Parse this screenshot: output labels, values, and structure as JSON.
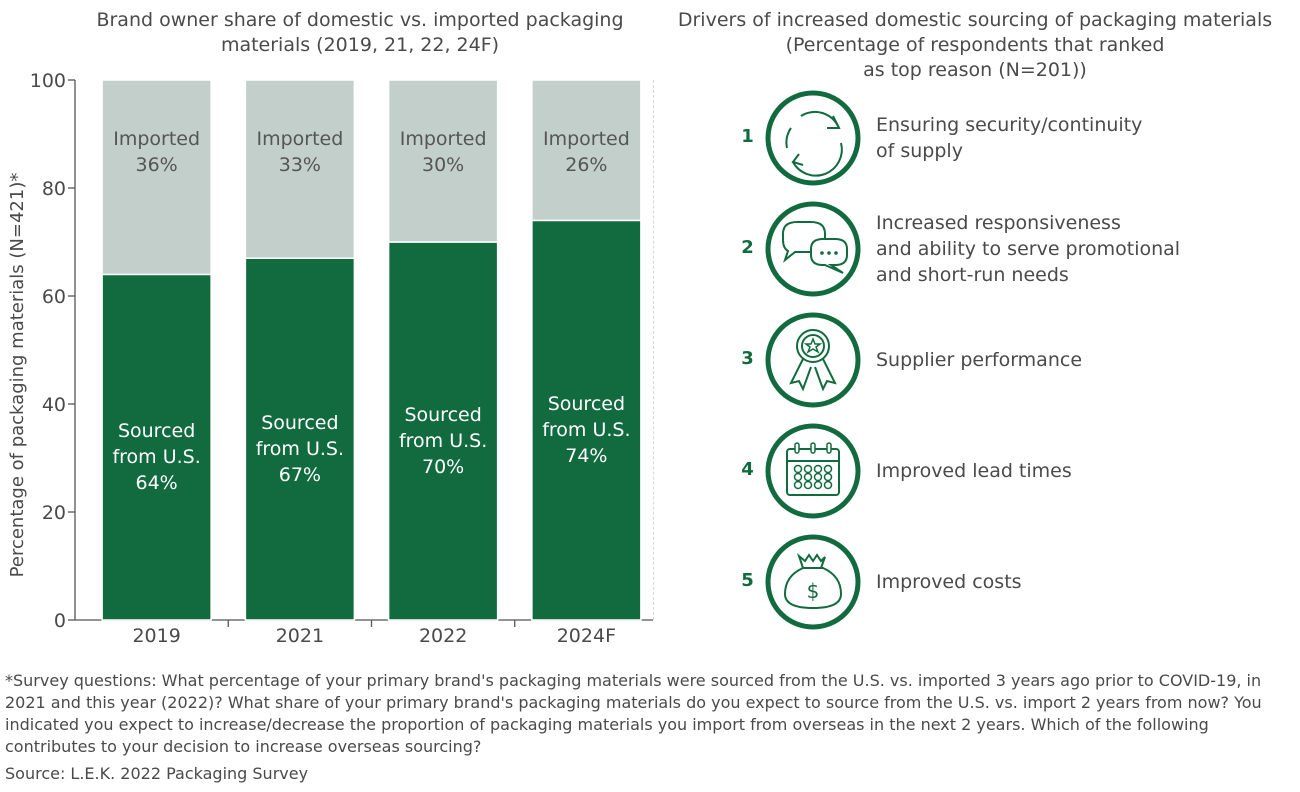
{
  "left_title": "Brand owner share of domestic vs. imported packaging materials (2019, 21, 22, 24F)",
  "right_title_line1": "Drivers of increased domestic sourcing of packaging materials",
  "right_title_line2": "(Percentage of respondents that ranked",
  "right_title_line3": "as top reason (N=201))",
  "chart_data": {
    "type": "bar",
    "stacked": true,
    "title": "Brand owner share of domestic vs. imported packaging materials (2019, 21, 22, 24F)",
    "ylabel": "Percentage of packaging materials (N=421)*",
    "xlabel": "",
    "ylim": [
      0,
      100
    ],
    "yticks": [
      0,
      20,
      40,
      60,
      80,
      100
    ],
    "categories": [
      "2019",
      "2021",
      "2022",
      "2024F"
    ],
    "series": [
      {
        "name": "Sourced from U.S.",
        "label_lines": [
          "Sourced",
          "from U.S."
        ],
        "values": [
          64,
          67,
          70,
          74
        ],
        "color": "#116b3f"
      },
      {
        "name": "Imported",
        "label_lines": [
          "Imported"
        ],
        "values": [
          36,
          33,
          30,
          26
        ],
        "color": "#c3cfcb"
      }
    ],
    "grid": false,
    "legend": "none"
  },
  "drivers": [
    {
      "rank": "1",
      "icon": "refresh-cycle-icon",
      "lines": [
        "Ensuring security/continuity",
        "of supply"
      ]
    },
    {
      "rank": "2",
      "icon": "chat-bubbles-icon",
      "lines": [
        "Increased responsiveness",
        "and ability to serve promotional",
        "and short-run needs"
      ]
    },
    {
      "rank": "3",
      "icon": "award-ribbon-icon",
      "lines": [
        "Supplier performance"
      ]
    },
    {
      "rank": "4",
      "icon": "calendar-icon",
      "lines": [
        "Improved lead times"
      ]
    },
    {
      "rank": "5",
      "icon": "money-bag-icon",
      "lines": [
        "Improved costs"
      ]
    }
  ],
  "footnote": "*Survey questions: What percentage of your primary brand's packaging materials were sourced from the U.S. vs. imported 3 years ago prior to COVID-19, in 2021 and this year (2022)? What share of your primary brand's packaging materials do you expect to source from the U.S. vs. import 2 years from now? You indicated you expect to increase/decrease the proportion of packaging materials you import from overseas in the next 2 years. Which of the following contributes to your decision to increase overseas sourcing?",
  "source": "Source: L.E.K. 2022 Packaging Survey",
  "colors": {
    "accent": "#116b3f",
    "imported": "#c3cfcb",
    "text": "#4a4a4a"
  }
}
